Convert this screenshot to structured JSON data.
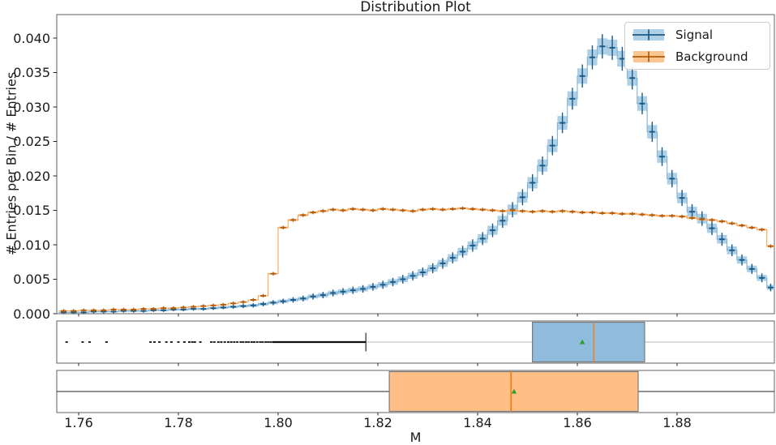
{
  "title": "Distribution Plot",
  "xlabel": "M",
  "ylabel": "# Entries per Bin / # Entries",
  "legend": {
    "items": [
      {
        "label": "Signal",
        "band_color": "#aed0e6",
        "marker_color": "#1b5a87"
      },
      {
        "label": "Background",
        "band_color": "#fcc693",
        "marker_color": "#b35c09"
      }
    ]
  },
  "axes": {
    "xlim": [
      1.7556,
      1.8995
    ],
    "ylim": [
      0,
      0.0433
    ],
    "xticks": [
      1.76,
      1.78,
      1.8,
      1.82,
      1.84,
      1.86,
      1.88
    ],
    "xtick_labels": [
      "1.76",
      "1.78",
      "1.80",
      "1.82",
      "1.84",
      "1.86",
      "1.88"
    ],
    "yticks": [
      0.0,
      0.005,
      0.01,
      0.015,
      0.02,
      0.025,
      0.03,
      0.035,
      0.04
    ],
    "ytick_labels": [
      "0.000",
      "0.005",
      "0.010",
      "0.015",
      "0.020",
      "0.025",
      "0.030",
      "0.035",
      "0.040"
    ],
    "spine_color": "#6e6e6e",
    "tick_color": "#262626"
  },
  "chart_data": [
    {
      "type": "line",
      "style": "step-histogram-with-error-bands",
      "title": "Distribution Plot",
      "xlabel": "M",
      "ylabel": "# Entries per Bin / # Entries",
      "bin_start": 1.756,
      "bin_width": 0.002,
      "xlim": [
        1.7556,
        1.8995
      ],
      "ylim": [
        0,
        0.0433
      ],
      "legend_position": "upper right",
      "series": [
        {
          "name": "Signal",
          "line_color": "#7fb2d6",
          "band_color": "#aed0e6",
          "marker_color": "#1b5a87",
          "err_coeff": 0.006,
          "values": [
            0.0002,
            0.0002,
            0.0002,
            0.0003,
            0.0003,
            0.0003,
            0.0004,
            0.0004,
            0.0004,
            0.0005,
            0.0005,
            0.0006,
            0.0006,
            0.0007,
            0.0007,
            0.0008,
            0.0009,
            0.001,
            0.0011,
            0.0012,
            0.0014,
            0.0016,
            0.0018,
            0.002,
            0.0022,
            0.0025,
            0.0027,
            0.003,
            0.0032,
            0.0034,
            0.0036,
            0.0039,
            0.0042,
            0.0046,
            0.005,
            0.0055,
            0.006,
            0.0066,
            0.0073,
            0.0081,
            0.009,
            0.0099,
            0.0109,
            0.0121,
            0.0135,
            0.0151,
            0.0169,
            0.019,
            0.0215,
            0.0244,
            0.0277,
            0.0312,
            0.0345,
            0.0372,
            0.0388,
            0.0386,
            0.037,
            0.0342,
            0.0305,
            0.0264,
            0.0228,
            0.0196,
            0.0168,
            0.0148,
            0.0138,
            0.0124,
            0.0108,
            0.0092,
            0.0078,
            0.0065,
            0.0052,
            0.0038
          ]
        },
        {
          "name": "Background",
          "line_color": "#f9a457",
          "band_color": "#fcc693",
          "marker_color": "#b35c09",
          "err_coeff": 0.0012,
          "values": [
            0.0004,
            0.0004,
            0.0005,
            0.0005,
            0.0005,
            0.0006,
            0.0006,
            0.0006,
            0.0007,
            0.0007,
            0.0008,
            0.0008,
            0.0009,
            0.001,
            0.0011,
            0.0012,
            0.0013,
            0.0015,
            0.0017,
            0.002,
            0.0026,
            0.0058,
            0.0125,
            0.0136,
            0.0143,
            0.0147,
            0.0149,
            0.0151,
            0.015,
            0.0152,
            0.0151,
            0.015,
            0.0152,
            0.0151,
            0.015,
            0.0149,
            0.0151,
            0.0152,
            0.0151,
            0.0152,
            0.0153,
            0.0152,
            0.0151,
            0.015,
            0.0149,
            0.015,
            0.0149,
            0.0148,
            0.0149,
            0.0148,
            0.0149,
            0.0148,
            0.0147,
            0.0147,
            0.0146,
            0.0146,
            0.0145,
            0.0145,
            0.0144,
            0.0143,
            0.0142,
            0.0142,
            0.0141,
            0.0139,
            0.0137,
            0.0136,
            0.0134,
            0.0131,
            0.0128,
            0.0125,
            0.0122,
            0.0098
          ]
        }
      ]
    },
    {
      "type": "boxplot",
      "name": "Signal",
      "orientation": "horizontal",
      "q1": 1.851,
      "median": 1.8633,
      "q3": 1.8735,
      "mean": 1.861,
      "whisker_low": 1.8176,
      "whisker_high": 1.8995,
      "whisker_high_clipped": true,
      "box_fill": "#8fbcdc",
      "box_border": "#7a7a7a",
      "median_color": "#ec8433",
      "mean_color": "#2ca02c",
      "whisker_color": "#c6c6c6",
      "cap_color": "#2b2b2b",
      "flier_color": "#111111",
      "fliers": [
        1.7576,
        1.7608,
        1.7622,
        1.7656,
        1.7744,
        1.7752,
        1.7762,
        1.7776,
        1.7786,
        1.78,
        1.7812,
        1.7822,
        1.7828,
        1.7833,
        1.7844,
        1.7866,
        1.7872,
        1.788,
        1.7886,
        1.7893,
        1.79,
        1.7906,
        1.7912,
        1.7918,
        1.7925,
        1.793,
        1.7936,
        1.7941,
        1.7947,
        1.7952,
        1.7958,
        1.7964,
        1.7969,
        1.7975,
        1.798,
        1.7985
      ],
      "flier_dense_range": [
        1.7988,
        1.8176
      ]
    },
    {
      "type": "boxplot",
      "name": "Background",
      "orientation": "horizontal",
      "q1": 1.8223,
      "median": 1.8467,
      "q3": 1.8722,
      "mean": 1.8473,
      "whisker_low": 1.7556,
      "whisker_high": 1.8995,
      "whisker_low_clipped": true,
      "whisker_high_clipped": true,
      "box_fill": "#ffbf87",
      "box_border": "#7a7a7a",
      "median_color": "#f57d14",
      "mean_color": "#2ca02c",
      "whisker_color": "#4d4d4d",
      "fliers": []
    }
  ]
}
